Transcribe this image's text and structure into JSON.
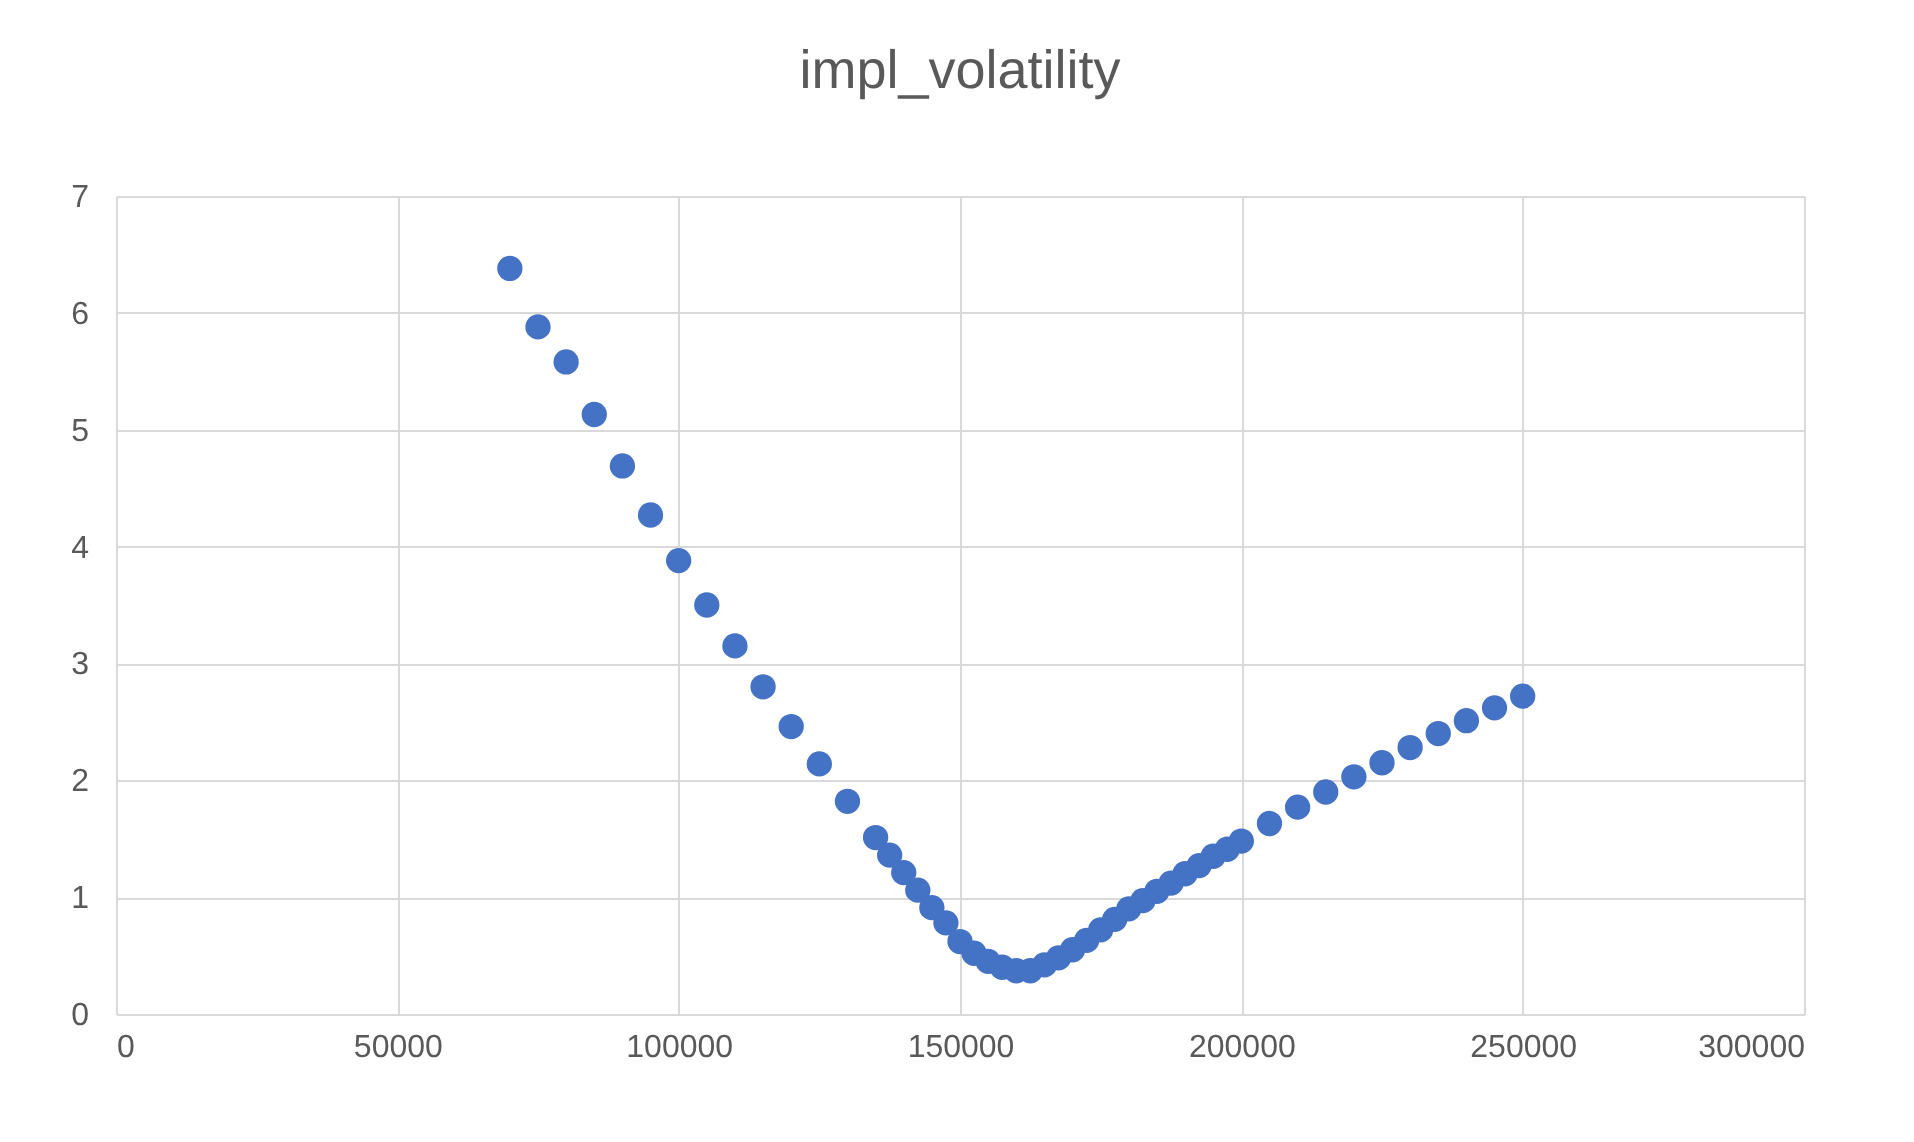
{
  "chart_data": {
    "type": "scatter",
    "title": "impl_volatility",
    "x": [
      70000,
      75000,
      80000,
      85000,
      90000,
      95000,
      100000,
      105000,
      110000,
      115000,
      120000,
      125000,
      130000,
      135000,
      137500,
      140000,
      142500,
      145000,
      147500,
      150000,
      152500,
      155000,
      157500,
      160000,
      162500,
      165000,
      167500,
      170000,
      172500,
      175000,
      177500,
      180000,
      182500,
      185000,
      187500,
      190000,
      192500,
      195000,
      197500,
      200000,
      205000,
      210000,
      215000,
      220000,
      225000,
      230000,
      235000,
      240000,
      245000,
      250000
    ],
    "series": [
      {
        "color": "#4472c4",
        "values": [
          6.38,
          5.88,
          5.58,
          5.13,
          4.69,
          4.27,
          3.88,
          3.5,
          3.15,
          2.8,
          2.46,
          2.14,
          1.82,
          1.51,
          1.36,
          1.21,
          1.06,
          0.91,
          0.78,
          0.62,
          0.52,
          0.45,
          0.4,
          0.37,
          0.37,
          0.42,
          0.48,
          0.55,
          0.63,
          0.72,
          0.81,
          0.9,
          0.97,
          1.05,
          1.12,
          1.2,
          1.27,
          1.35,
          1.41,
          1.48,
          1.63,
          1.77,
          1.9,
          2.03,
          2.15,
          2.28,
          2.4,
          2.51,
          2.62,
          2.72
        ]
      }
    ],
    "xlim": [
      0,
      300000
    ],
    "xticks": [
      0,
      50000,
      100000,
      150000,
      200000,
      250000,
      300000
    ],
    "ylim": [
      0,
      7
    ],
    "yticks": [
      0,
      1,
      2,
      3,
      4,
      5,
      6,
      7
    ],
    "grid": true,
    "marker": "circle"
  }
}
